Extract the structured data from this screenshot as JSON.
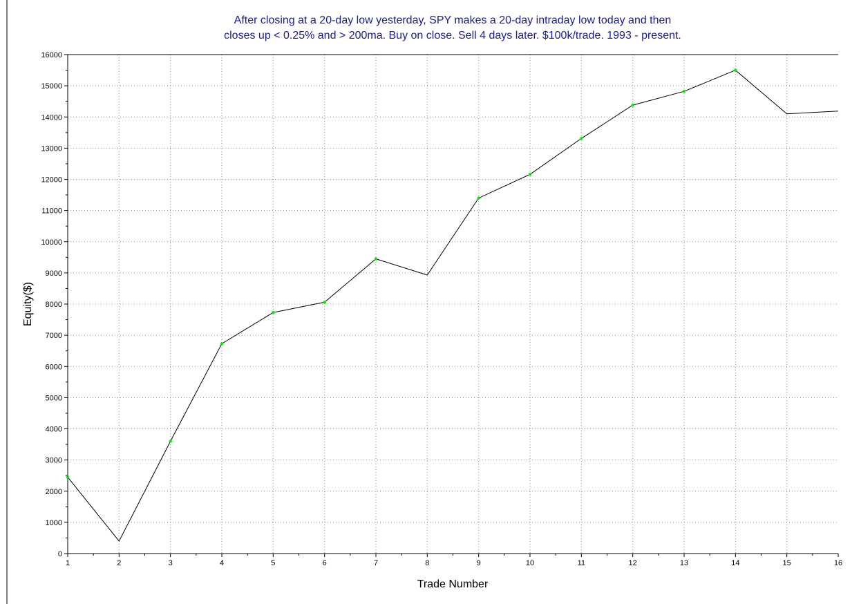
{
  "chart_data": {
    "type": "line",
    "title_lines": [
      "After closing at a 20-day low yesterday, SPY makes a 20-day intraday low today and then",
      "closes up < 0.25% and > 200ma. Buy on close. Sell 4 days later. $100k/trade. 1993 - present."
    ],
    "xlabel": "Trade Number",
    "ylabel": "Equity($)",
    "xlim": [
      1,
      16
    ],
    "ylim": [
      0,
      16000
    ],
    "x_ticks": [
      1,
      2,
      3,
      4,
      5,
      6,
      7,
      8,
      9,
      10,
      11,
      12,
      13,
      14,
      15,
      16
    ],
    "y_ticks": [
      0,
      1000,
      2000,
      3000,
      4000,
      5000,
      6000,
      7000,
      8000,
      9000,
      10000,
      11000,
      12000,
      13000,
      14000,
      15000,
      16000
    ],
    "grid": true,
    "series": [
      {
        "x": [
          1,
          2,
          3,
          4,
          5,
          6,
          7,
          8,
          9,
          10,
          11,
          12,
          13,
          14,
          15,
          16
        ],
        "y": [
          2450,
          400,
          3600,
          6730,
          7730,
          8060,
          9450,
          8930,
          11400,
          12160,
          13310,
          14380,
          14820,
          15500,
          14100,
          14190
        ],
        "marker_color": "#00ee00",
        "line_color": "#000000"
      }
    ],
    "markers_on": [
      1,
      3,
      4,
      5,
      6,
      7,
      9,
      10,
      11,
      12,
      13,
      14
    ],
    "colors": {
      "title": "#1a1a9a",
      "grid": "#8a8a8a",
      "axis": "#000000",
      "border": "#000000"
    }
  }
}
